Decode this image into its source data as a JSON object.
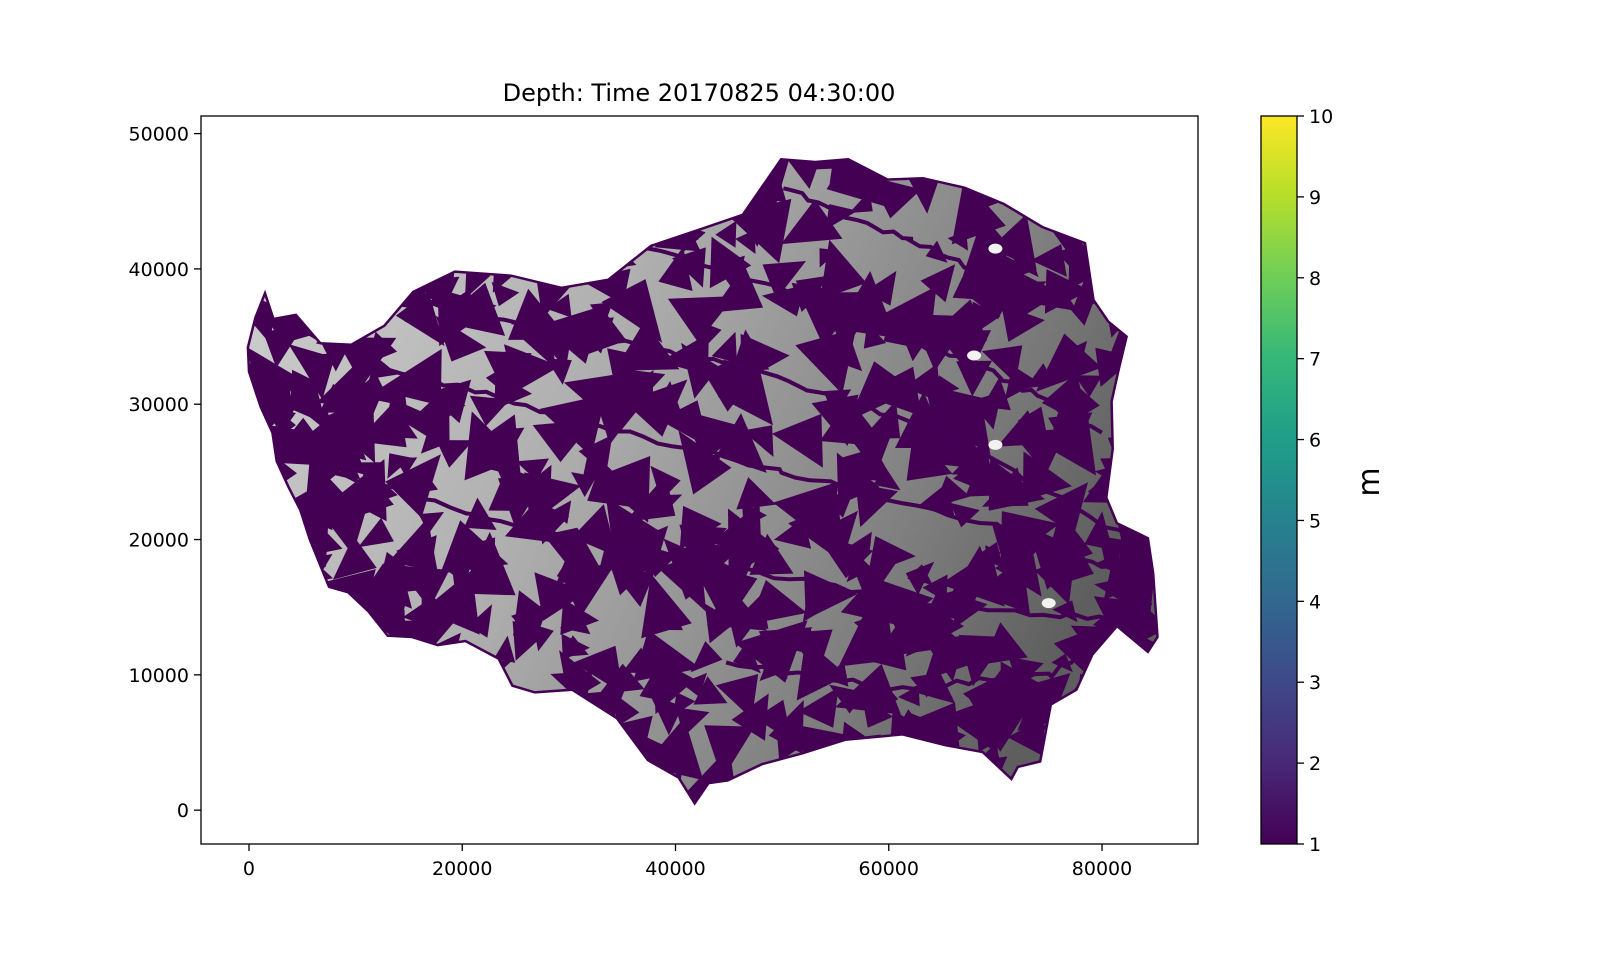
{
  "chart_data": {
    "type": "heatmap",
    "title": "Depth: Time 20170825 04:30:00",
    "xlabel": "",
    "ylabel": "",
    "xlim": [
      -4500,
      89000
    ],
    "ylim": [
      -2500,
      51300
    ],
    "x_ticks": [
      0,
      20000,
      40000,
      60000,
      80000
    ],
    "y_ticks": [
      0,
      10000,
      20000,
      30000,
      40000,
      50000
    ],
    "grid": false,
    "colorbar": {
      "label": "m",
      "range": [
        1,
        10
      ],
      "ticks": [
        1,
        2,
        3,
        4,
        5,
        6,
        7,
        8,
        9,
        10
      ],
      "colormap": "viridis",
      "colors": [
        "#440154",
        "#482878",
        "#3e4989",
        "#31688e",
        "#26828e",
        "#1f9e89",
        "#35b779",
        "#6ece58",
        "#b5de2b",
        "#fde725"
      ]
    },
    "background_shading": "grayscale hillshade (light gray west to dark gray east)",
    "dominant_depth_color": "#440154",
    "domain_outline": [
      [
        1500,
        38200
      ],
      [
        2300,
        36300
      ],
      [
        4400,
        36600
      ],
      [
        6700,
        34500
      ],
      [
        9600,
        34400
      ],
      [
        12700,
        35800
      ],
      [
        15400,
        38300
      ],
      [
        19300,
        39800
      ],
      [
        24600,
        39500
      ],
      [
        29300,
        38600
      ],
      [
        33700,
        39200
      ],
      [
        37700,
        41700
      ],
      [
        42600,
        43000
      ],
      [
        46300,
        44000
      ],
      [
        49900,
        48100
      ],
      [
        53100,
        47900
      ],
      [
        56200,
        48100
      ],
      [
        59900,
        46600
      ],
      [
        63200,
        46700
      ],
      [
        67100,
        46000
      ],
      [
        70800,
        44800
      ],
      [
        74400,
        43100
      ],
      [
        78400,
        41900
      ],
      [
        79200,
        37700
      ],
      [
        80600,
        36100
      ],
      [
        82300,
        35000
      ],
      [
        81600,
        32700
      ],
      [
        80900,
        30200
      ],
      [
        81000,
        26700
      ],
      [
        80400,
        23100
      ],
      [
        81400,
        21200
      ],
      [
        84300,
        20100
      ],
      [
        84800,
        17500
      ],
      [
        85200,
        12800
      ],
      [
        84300,
        11700
      ],
      [
        81400,
        13600
      ],
      [
        79100,
        11500
      ],
      [
        77600,
        8900
      ],
      [
        75200,
        7800
      ],
      [
        74200,
        3600
      ],
      [
        72100,
        3200
      ],
      [
        71500,
        2300
      ],
      [
        68800,
        4300
      ],
      [
        65300,
        4800
      ],
      [
        61300,
        5600
      ],
      [
        55900,
        5200
      ],
      [
        51900,
        4200
      ],
      [
        48100,
        3400
      ],
      [
        44900,
        2200
      ],
      [
        43100,
        2000
      ],
      [
        41800,
        500
      ],
      [
        40300,
        2400
      ],
      [
        37400,
        3700
      ],
      [
        34500,
        6800
      ],
      [
        30300,
        8900
      ],
      [
        26800,
        8700
      ],
      [
        24700,
        9200
      ],
      [
        23400,
        11200
      ],
      [
        20300,
        12500
      ],
      [
        17700,
        12200
      ],
      [
        15300,
        12800
      ],
      [
        13000,
        12900
      ],
      [
        11200,
        14700
      ],
      [
        9300,
        16100
      ],
      [
        7500,
        16500
      ],
      [
        5700,
        20000
      ],
      [
        4800,
        22200
      ],
      [
        3700,
        23900
      ],
      [
        2600,
        25800
      ],
      [
        2200,
        27900
      ],
      [
        1100,
        29800
      ],
      [
        0,
        32400
      ],
      [
        -100,
        34200
      ],
      [
        600,
        36400
      ]
    ],
    "dry_patches": [
      [
        70000,
        27000
      ],
      [
        75000,
        15300
      ],
      [
        70000,
        41500
      ],
      [
        68000,
        33600
      ]
    ]
  }
}
